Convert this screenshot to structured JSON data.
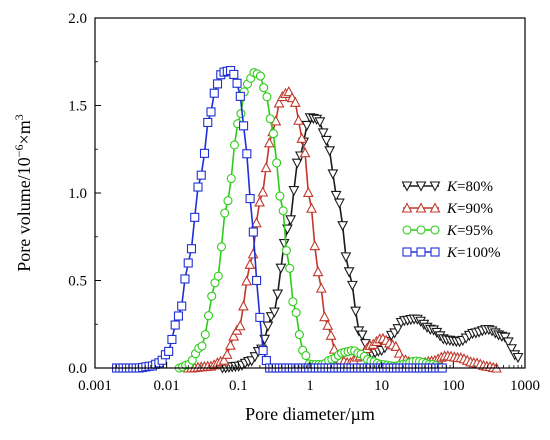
{
  "chart_data": {
    "type": "line",
    "xlabel": "Pore diameter/µm",
    "ylabel_main": "Pore volume/10",
    "ylabel_sup": "−6",
    "ylabel_tail": "×m",
    "ylabel_sup2": "3",
    "xscale": "log",
    "xlim": [
      0.001,
      1000
    ],
    "ylim": [
      0,
      2.0
    ],
    "xticks": [
      0.001,
      0.01,
      0.1,
      1,
      10,
      100,
      1000
    ],
    "xtick_labels": [
      "0.001",
      "0.01",
      "0.1",
      "1",
      "10",
      "100",
      "1000"
    ],
    "yticks": [
      0,
      0.5,
      1.0,
      1.5,
      2.0
    ],
    "ytick_labels": [
      "0.0",
      "0.5",
      "1.0",
      "1.5",
      "2.0"
    ],
    "grid": false,
    "legend_position": "right-middle",
    "series": [
      {
        "name": "K=80%",
        "legend_var": "K",
        "legend_val": "=80%",
        "color": "#1a1a1a",
        "marker": "triangle-down",
        "x": [
          0.06,
          0.1,
          0.15,
          0.2,
          0.3,
          0.5,
          0.7,
          1.0,
          1.3,
          1.7,
          2.5,
          3.5,
          5.0,
          7.0,
          10,
          15,
          20,
          30,
          50,
          80,
          120,
          200,
          300,
          500,
          800
        ],
        "y": [
          0.0,
          0.01,
          0.04,
          0.1,
          0.3,
          0.8,
          1.2,
          1.43,
          1.42,
          1.3,
          0.95,
          0.55,
          0.2,
          0.08,
          0.1,
          0.2,
          0.27,
          0.28,
          0.22,
          0.16,
          0.15,
          0.2,
          0.22,
          0.18,
          0.06
        ]
      },
      {
        "name": "K=90%",
        "legend_var": "K",
        "legend_val": "=90%",
        "color": "#c0392b",
        "marker": "triangle-up",
        "x": [
          0.02,
          0.04,
          0.06,
          0.1,
          0.15,
          0.2,
          0.3,
          0.4,
          0.5,
          0.6,
          0.8,
          1.0,
          1.3,
          1.7,
          2.5,
          3.5,
          5.0,
          7.0,
          10,
          15,
          20,
          30,
          50,
          80,
          120,
          200,
          300,
          400
        ],
        "y": [
          0.0,
          0.01,
          0.04,
          0.22,
          0.6,
          0.95,
          1.35,
          1.55,
          1.58,
          1.53,
          1.3,
          0.95,
          0.55,
          0.25,
          0.05,
          0.03,
          0.07,
          0.13,
          0.17,
          0.13,
          0.05,
          0.02,
          0.04,
          0.07,
          0.06,
          0.03,
          0.01,
          0.0
        ]
      },
      {
        "name": "K=95%",
        "legend_var": "K",
        "legend_val": "=95%",
        "color": "#2ecc1a",
        "marker": "circle",
        "x": [
          0.015,
          0.02,
          0.03,
          0.05,
          0.07,
          0.1,
          0.13,
          0.17,
          0.2,
          0.25,
          0.3,
          0.4,
          0.5,
          0.6,
          0.8,
          1.0,
          1.5,
          2.0,
          3.0,
          4.0,
          5.0,
          7.0,
          10,
          15,
          20,
          30,
          50,
          70
        ],
        "y": [
          0.0,
          0.02,
          0.12,
          0.5,
          0.95,
          1.4,
          1.62,
          1.69,
          1.67,
          1.55,
          1.35,
          0.95,
          0.6,
          0.35,
          0.1,
          0.02,
          0.02,
          0.05,
          0.09,
          0.1,
          0.08,
          0.04,
          0.02,
          0.01,
          0.02,
          0.04,
          0.02,
          0.0
        ]
      },
      {
        "name": "K=100%",
        "legend_var": "K",
        "legend_val": "=100%",
        "color": "#1f2fd6",
        "marker": "square",
        "x": [
          0.002,
          0.004,
          0.006,
          0.008,
          0.01,
          0.015,
          0.02,
          0.03,
          0.04,
          0.05,
          0.06,
          0.08,
          0.1,
          0.12,
          0.15,
          0.18,
          0.22,
          0.27,
          0.3,
          0.5,
          1.0,
          2.0,
          5.0,
          10,
          20,
          50,
          70
        ],
        "y": [
          0.0,
          0.0,
          0.01,
          0.03,
          0.08,
          0.3,
          0.6,
          1.1,
          1.45,
          1.62,
          1.69,
          1.7,
          1.62,
          1.38,
          0.95,
          0.5,
          0.1,
          0.0,
          0.0,
          0.0,
          0.0,
          0.0,
          0.0,
          0.0,
          0.0,
          0.0,
          0.0
        ]
      }
    ]
  }
}
